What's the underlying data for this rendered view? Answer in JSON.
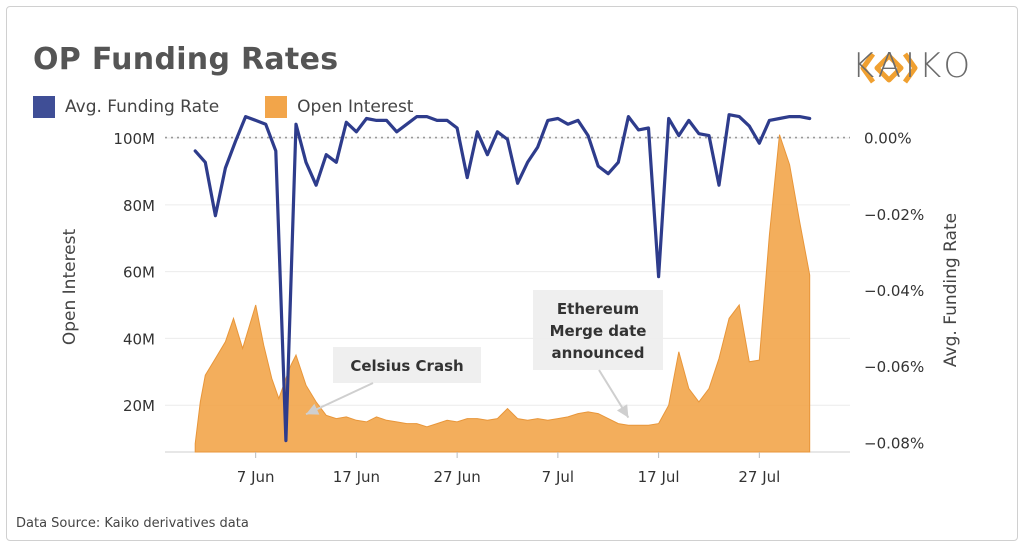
{
  "title": "OP Funding Rates",
  "brand": {
    "name": "KAIKO",
    "icon": "kaiko-logo-icon",
    "color": "#F0A030"
  },
  "legend": [
    {
      "label": "Avg. Funding Rate",
      "color": "#3F4E96"
    },
    {
      "label": "Open Interest",
      "color": "#F2A54A"
    }
  ],
  "source": "Data Source: Kaiko derivatives data",
  "chart_data": {
    "type": "line",
    "title": "OP Funding Rates",
    "x_axis": {
      "ticks": [
        {
          "value": 7,
          "label": "7 Jun"
        },
        {
          "value": 17,
          "label": "17 Jun"
        },
        {
          "value": 27,
          "label": "27 Jun"
        },
        {
          "value": 37,
          "label": "7 Jul"
        },
        {
          "value": 47,
          "label": "17 Jul"
        },
        {
          "value": 57,
          "label": "27 Jul"
        }
      ],
      "range": [
        -2,
        66
      ]
    },
    "y_left": {
      "label": "Open Interest",
      "range": [
        6000000,
        103000000
      ],
      "ticks": [
        {
          "value": 20000000,
          "label": "20M"
        },
        {
          "value": 40000000,
          "label": "40M"
        },
        {
          "value": 60000000,
          "label": "60M"
        },
        {
          "value": 80000000,
          "label": "80M"
        },
        {
          "value": 100000000,
          "label": "100M"
        }
      ]
    },
    "y_right": {
      "label": "Avg. Funding Rate",
      "range": [
        -0.0825,
        0.0025
      ],
      "ticks": [
        {
          "value": 0,
          "label": "0.00%"
        },
        {
          "value": -0.02,
          "label": "−0.02%"
        },
        {
          "value": -0.04,
          "label": "−0.04%"
        },
        {
          "value": -0.06,
          "label": "−0.06%"
        },
        {
          "value": -0.08,
          "label": "−0.08%"
        }
      ]
    },
    "grid": "horizontal",
    "legend_position": "top-left",
    "series": [
      {
        "name": "Open Interest",
        "type": "area",
        "axis": "left",
        "color": "#F2A54A",
        "x": [
          1,
          1.5,
          2,
          3,
          4,
          4.8,
          5.7,
          7,
          7.8,
          8.6,
          9.3,
          10,
          10.5,
          11,
          12,
          13,
          14,
          15,
          16,
          17,
          18,
          19,
          20,
          21,
          22,
          23,
          24,
          25,
          26,
          27,
          28,
          29,
          30,
          31,
          32,
          33,
          34,
          35,
          36,
          37,
          38,
          39,
          40,
          41,
          42,
          43,
          44,
          45,
          46,
          47,
          48,
          49,
          50,
          51,
          52,
          53,
          54,
          55,
          56,
          57,
          58,
          59,
          60,
          61,
          62
        ],
        "y": [
          8500000,
          21000000,
          29000000,
          34000000,
          39000000,
          46000000,
          37000000,
          50000000,
          38000000,
          28000000,
          22000000,
          28000000,
          32000000,
          35000000,
          26000000,
          21000000,
          17000000,
          16000000,
          16500000,
          15500000,
          15000000,
          16500000,
          15500000,
          15000000,
          14500000,
          14500000,
          13500000,
          14500000,
          15500000,
          15000000,
          16000000,
          16000000,
          15500000,
          16000000,
          19000000,
          16000000,
          15500000,
          16000000,
          15500000,
          16000000,
          16500000,
          17500000,
          18000000,
          17500000,
          16000000,
          14500000,
          14000000,
          14000000,
          14000000,
          14500000,
          20000000,
          36000000,
          25000000,
          21000000,
          25000000,
          34000000,
          46000000,
          50000000,
          33000000,
          33500000,
          71000000,
          101000000,
          92000000,
          75000000,
          59000000
        ]
      },
      {
        "name": "Avg. Funding Rate",
        "type": "line",
        "axis": "right",
        "color": "#2E3C8C",
        "x": [
          1,
          2,
          3,
          4,
          5,
          6,
          7,
          8,
          9,
          10,
          11,
          12,
          13,
          14,
          15,
          16,
          17,
          18,
          19,
          20,
          21,
          22,
          23,
          24,
          25,
          26,
          27,
          28,
          29,
          30,
          31,
          32,
          33,
          34,
          35,
          36,
          37,
          38,
          39,
          40,
          41,
          42,
          43,
          44,
          45,
          46,
          47,
          48,
          49,
          50,
          51,
          52,
          53,
          54,
          55,
          56,
          57,
          58,
          59,
          60,
          61,
          62
        ],
        "y": [
          -0.0035,
          -0.0065,
          -0.0205,
          -0.008,
          -0.001,
          0.0055,
          0.0045,
          0.0035,
          -0.0035,
          -0.0795,
          0.0035,
          -0.0065,
          -0.0125,
          -0.0045,
          -0.0065,
          0.004,
          0.0015,
          0.005,
          0.0045,
          0.0045,
          0.0015,
          0.0035,
          0.0055,
          0.0055,
          0.0045,
          0.0045,
          0.0025,
          -0.0105,
          0.0015,
          -0.0045,
          0.0015,
          -0.0005,
          -0.012,
          -0.0065,
          -0.0025,
          0.0045,
          0.005,
          0.0035,
          0.0045,
          0.0005,
          -0.0075,
          -0.0095,
          -0.0065,
          0.0055,
          0.002,
          0.0025,
          -0.0365,
          0.005,
          0.0005,
          0.0045,
          0.001,
          0.0005,
          -0.0125,
          0.006,
          0.0055,
          0.003,
          -0.0015,
          0.0045,
          0.005,
          0.0055,
          0.0055,
          0.005
        ]
      }
    ],
    "reference_line": {
      "axis": "right",
      "value": 0,
      "style": "dotted"
    },
    "annotations": [
      {
        "lines": [
          "Celsius Crash"
        ],
        "pointer_x": 12,
        "pointer_y_left": 15500000
      },
      {
        "lines": [
          "Ethereum",
          "Merge date",
          "announced"
        ],
        "pointer_x": 44,
        "pointer_y_left": 14500000
      }
    ]
  }
}
